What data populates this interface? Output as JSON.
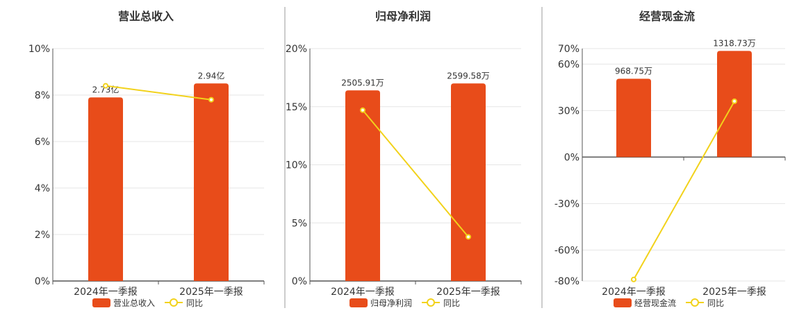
{
  "colors": {
    "bar": "#e84c1a",
    "line": "#f2d21b",
    "axis": "#555555",
    "grid": "#e6e6e6",
    "text": "#333333",
    "divider": "#999999"
  },
  "chart_data": [
    {
      "type": "bar",
      "title": "营业总收入",
      "categories": [
        "2024年一季报",
        "2025年一季报"
      ],
      "ylim": [
        0,
        10
      ],
      "yticks": [
        0,
        2,
        4,
        6,
        8,
        10
      ],
      "ytick_labels": [
        "0%",
        "2%",
        "4%",
        "6%",
        "8%",
        "10%"
      ],
      "series": [
        {
          "name": "营业总收入",
          "kind": "bar",
          "values": [
            7.9,
            8.5
          ],
          "labels": [
            "2.73亿",
            "2.94亿"
          ]
        },
        {
          "name": "同比",
          "kind": "line",
          "values": [
            8.4,
            7.8
          ]
        }
      ],
      "legend": "bottom-center"
    },
    {
      "type": "bar",
      "title": "归母净利润",
      "categories": [
        "2024年一季报",
        "2025年一季报"
      ],
      "ylim": [
        0,
        20
      ],
      "yticks": [
        0,
        5,
        10,
        15,
        20
      ],
      "ytick_labels": [
        "0%",
        "5%",
        "10%",
        "15%",
        "20%"
      ],
      "series": [
        {
          "name": "归母净利润",
          "kind": "bar",
          "values": [
            16.4,
            17.0
          ],
          "labels": [
            "2505.91万",
            "2599.58万"
          ]
        },
        {
          "name": "同比",
          "kind": "line",
          "values": [
            14.7,
            3.8
          ]
        }
      ],
      "legend": "bottom-center"
    },
    {
      "type": "bar",
      "title": "经营现金流",
      "categories": [
        "2024年一季报",
        "2025年一季报"
      ],
      "ylim": [
        -80,
        70
      ],
      "yticks": [
        -80,
        -60,
        -30,
        0,
        30,
        60,
        70
      ],
      "ytick_labels": [
        "-80%",
        "-60%",
        "-30%",
        "0%",
        "30%",
        "60%",
        "70%"
      ],
      "series": [
        {
          "name": "经营现金流",
          "kind": "bar",
          "values": [
            50.5,
            68.5
          ],
          "labels": [
            "968.75万",
            "1318.73万"
          ]
        },
        {
          "name": "同比",
          "kind": "line",
          "values": [
            -79,
            36
          ]
        }
      ],
      "legend": "bottom-center"
    }
  ]
}
